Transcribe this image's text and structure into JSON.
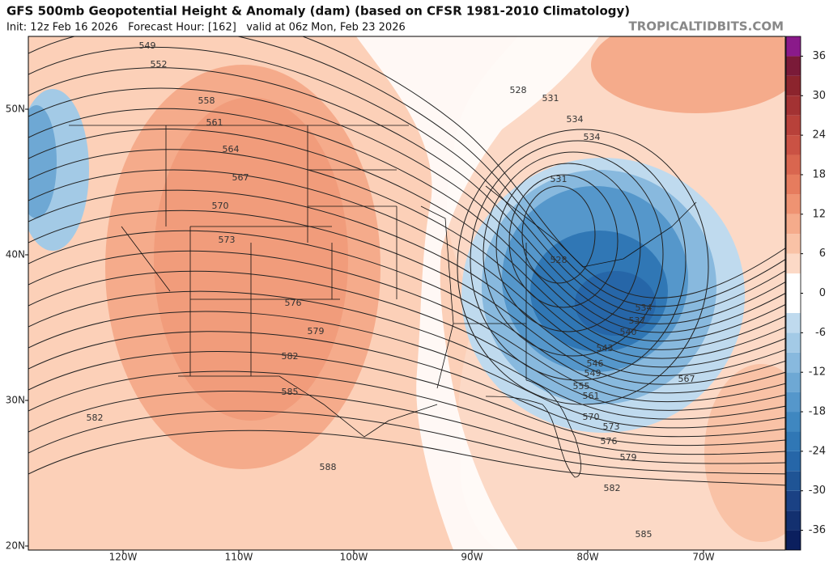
{
  "header": {
    "title": "GFS 500mb Geopotential Height & Anomaly (dam) (based on CFSR 1981-2010 Climatology)",
    "subtitle": "Init: 12z Feb 16 2026   Forecast Hour: [162]   valid at 06z Mon, Feb 23 2026",
    "credit": "TROPICALTIDBITS.COM"
  },
  "map": {
    "lat_labels": [
      "50N",
      "40N",
      "30N",
      "20N"
    ],
    "lon_labels": [
      "120W",
      "110W",
      "100W",
      "90W",
      "80W",
      "70W"
    ],
    "contour_labels": [
      549,
      552,
      558,
      561,
      564,
      567,
      570,
      573,
      576,
      579,
      582,
      585,
      588,
      582,
      528,
      531,
      534,
      534,
      531,
      528,
      534,
      537,
      540,
      543,
      546,
      549,
      555,
      561,
      567,
      570,
      573,
      576,
      579,
      582,
      585
    ]
  },
  "colorbar": {
    "lim": [
      -39,
      39
    ],
    "ticks": [
      36,
      30,
      24,
      18,
      12,
      6,
      0,
      -6,
      -12,
      -18,
      -24,
      -30,
      -36
    ],
    "colors": [
      "#0b1f5e",
      "#13306f",
      "#1a4184",
      "#1f5495",
      "#2666a8",
      "#3077b5",
      "#3f87c0",
      "#5597cb",
      "#6ea8d4",
      "#88b9de",
      "#a3cae6",
      "#bfdaee",
      "#ffffff",
      "#ffffff",
      "#fcd9c6",
      "#f9c2a6",
      "#f5ab8b",
      "#ef9372",
      "#e67c5e",
      "#d9664f",
      "#ca5244",
      "#b8413a",
      "#a33233",
      "#8c242d",
      "#7a1a38",
      "#8a1a8a"
    ]
  }
}
